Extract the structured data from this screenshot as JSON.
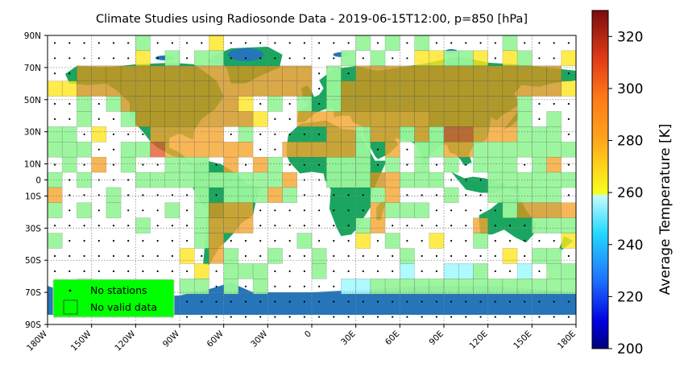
{
  "title": "Climate Studies using Radiosonde Data - 2019-06-15T12:00, p=850 [hPa]",
  "map": {
    "x_ticks": [
      "180W",
      "150W",
      "120W",
      "90W",
      "60W",
      "30W",
      "0",
      "30E",
      "60E",
      "90E",
      "120E",
      "150E",
      "180E"
    ],
    "y_ticks": [
      "90N",
      "70N",
      "50N",
      "30N",
      "10N",
      "0",
      "10S",
      "30S",
      "50S",
      "70S",
      "90S"
    ],
    "legend": {
      "no_stations": "No stations",
      "no_valid_data": "No valid data"
    },
    "colors": {
      "ocean": "#ffffff",
      "land": "#1aa660",
      "ice": "#2575b8",
      "no_data_cell": "#98f59a",
      "legend_bg": "#00ff00"
    }
  },
  "colorbar": {
    "label": "Average Temperature [K]",
    "ticks": [
      "200",
      "220",
      "240",
      "260",
      "280",
      "300",
      "320"
    ],
    "range": [
      200,
      330
    ],
    "colormap": "custom: blue (200) - cyan (260) - yellow (265) - orange - red - dark red (330)"
  }
}
